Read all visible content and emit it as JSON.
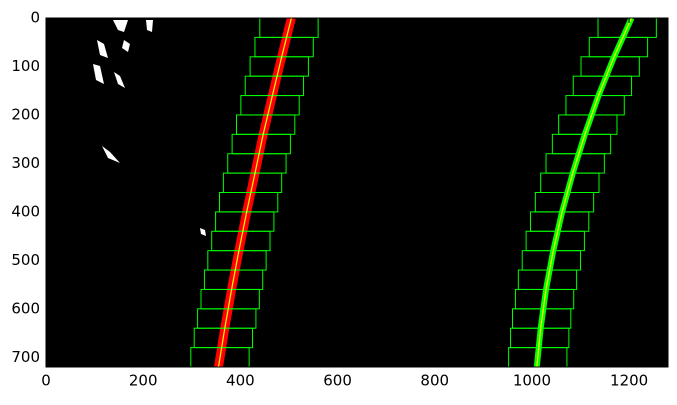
{
  "chart_data": {
    "type": "image",
    "xlim": [
      0,
      1280
    ],
    "ylim": [
      720,
      0
    ],
    "xticks": [
      0,
      200,
      400,
      600,
      800,
      1000,
      1200
    ],
    "yticks": [
      0,
      100,
      200,
      300,
      400,
      500,
      600,
      700
    ],
    "background": "#000000",
    "window_color": "#00ff00",
    "window_width": 120,
    "window_height": 40,
    "lanes": [
      {
        "pixel_color": "#ff0000",
        "fit_color": "#ffff00",
        "y": [
          0,
          80,
          160,
          240,
          320,
          400,
          480,
          560,
          640,
          720
        ],
        "x": [
          505,
          485,
          466,
          447,
          430,
          413,
          397,
          382,
          368,
          355
        ],
        "window_x": [
          500,
          490,
          480,
          470,
          461,
          452,
          443,
          434,
          425,
          417,
          409,
          401,
          393,
          386,
          379,
          372,
          365,
          358
        ]
      },
      {
        "pixel_color": "#00ff00",
        "fit_color": "#ffff00",
        "y": [
          0,
          80,
          160,
          240,
          320,
          400,
          480,
          560,
          640,
          720
        ],
        "x": [
          1205,
          1169,
          1137,
          1109,
          1084,
          1062,
          1044,
          1029,
          1018,
          1010
        ],
        "window_x": [
          1196,
          1178,
          1161,
          1145,
          1130,
          1115,
          1102,
          1089,
          1078,
          1067,
          1057,
          1048,
          1040,
          1032,
          1026,
          1020,
          1016,
          1012
        ]
      }
    ]
  }
}
